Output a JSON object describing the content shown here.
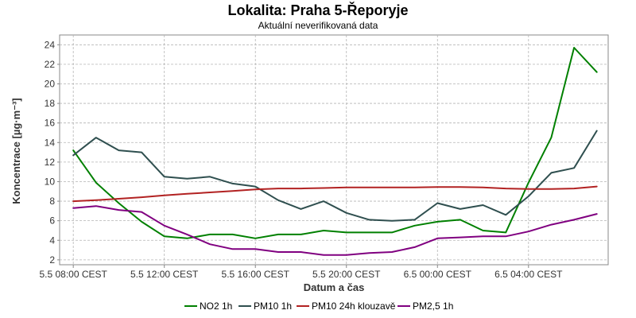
{
  "chart_data": {
    "type": "line",
    "title": "Lokalita: Praha 5-Řeporyje",
    "subtitle": "Aktuální neverifikovaná data",
    "xlabel": "Datum a čas",
    "ylabel": "Koncentrace [µg·m⁻³]",
    "ylim": [
      1.5,
      25
    ],
    "yticks": [
      2,
      4,
      6,
      8,
      10,
      12,
      14,
      16,
      18,
      20,
      22,
      24
    ],
    "xlim": [
      -0.6,
      23.5
    ],
    "xticks": [
      {
        "pos": 0,
        "label": "5.5 08:00 CEST"
      },
      {
        "pos": 4,
        "label": "5.5 12:00 CEST"
      },
      {
        "pos": 8,
        "label": "5.5 16:00 CEST"
      },
      {
        "pos": 12,
        "label": "5.5 20:00 CEST"
      },
      {
        "pos": 16,
        "label": "6.5 00:00 CEST"
      },
      {
        "pos": 20,
        "label": "6.5 04:00 CEST"
      }
    ],
    "grid": true,
    "legend_position": "bottom",
    "x": [
      0,
      1,
      2,
      3,
      4,
      5,
      6,
      7,
      8,
      9,
      10,
      11,
      12,
      13,
      14,
      15,
      16,
      17,
      18,
      19,
      20,
      21,
      22,
      23
    ],
    "series": [
      {
        "name": "NO2 1h",
        "color": "#008000",
        "values": [
          13.2,
          9.9,
          7.8,
          5.9,
          4.4,
          4.2,
          4.6,
          4.6,
          4.2,
          4.6,
          4.6,
          5.0,
          4.8,
          4.8,
          4.8,
          5.5,
          5.9,
          6.1,
          5.0,
          4.8,
          9.9,
          14.5,
          23.7,
          21.2
        ]
      },
      {
        "name": "PM10 1h",
        "color": "#2f4f4f",
        "values": [
          12.7,
          14.5,
          13.2,
          13.0,
          10.5,
          10.3,
          10.5,
          9.8,
          9.5,
          8.1,
          7.2,
          8.0,
          6.8,
          6.1,
          6.0,
          6.1,
          7.8,
          7.2,
          7.6,
          6.6,
          8.5,
          10.9,
          11.4,
          15.2
        ]
      },
      {
        "name": "PM10 24h klouzavě",
        "color": "#b22222",
        "values": [
          8.0,
          8.1,
          8.25,
          8.4,
          8.6,
          8.75,
          8.9,
          9.05,
          9.2,
          9.3,
          9.3,
          9.35,
          9.4,
          9.4,
          9.4,
          9.4,
          9.45,
          9.45,
          9.4,
          9.3,
          9.25,
          9.25,
          9.3,
          9.5
        ]
      },
      {
        "name": "PM2,5 1h",
        "color": "#800080",
        "values": [
          7.3,
          7.5,
          7.1,
          6.9,
          5.5,
          4.6,
          3.6,
          3.1,
          3.1,
          2.8,
          2.8,
          2.5,
          2.5,
          2.7,
          2.8,
          3.3,
          4.2,
          4.3,
          4.4,
          4.4,
          4.9,
          5.6,
          6.1,
          6.7
        ]
      }
    ]
  }
}
